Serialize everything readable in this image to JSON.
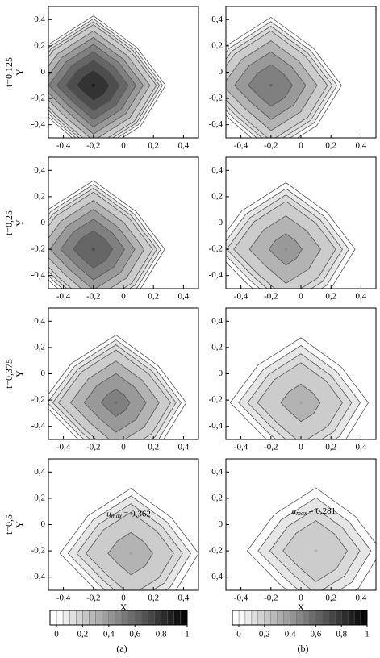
{
  "chart_data": [
    {
      "type": "contour",
      "row_label": "t=0,125",
      "ylabel": "Y",
      "xlim": [
        -0.5,
        0.5
      ],
      "ylim": [
        -0.5,
        0.5
      ],
      "xticks": [
        {
          "value": -0.4,
          "label": "-0,4"
        },
        {
          "value": -0.2,
          "label": "-0,2"
        },
        0,
        {
          "value": 0.2,
          "label": "0,2"
        },
        {
          "value": 0.4,
          "label": "0,4"
        }
      ],
      "yticks": [
        {
          "value": -0.4,
          "label": "-0,4"
        },
        {
          "value": -0.2,
          "label": "-0,2"
        },
        0,
        {
          "value": 0.2,
          "label": "0,2"
        },
        {
          "value": 0.4,
          "label": "0,4"
        }
      ],
      "peak": {
        "x": -0.2,
        "y": -0.1,
        "max": 0.9
      },
      "levels": [
        0.05,
        0.1,
        0.15,
        0.2,
        0.3,
        0.4,
        0.5,
        0.6,
        0.7,
        0.8
      ]
    },
    {
      "type": "contour",
      "xlim": [
        -0.5,
        0.5
      ],
      "ylim": [
        -0.5,
        0.5
      ],
      "xticks": [
        {
          "value": -0.4,
          "label": "-0,4"
        },
        {
          "value": -0.2,
          "label": "-0,2"
        },
        0,
        {
          "value": 0.2,
          "label": "0,2"
        },
        {
          "value": 0.4,
          "label": "0,4"
        }
      ],
      "yticks": [
        {
          "value": -0.4,
          "label": "-0,4"
        },
        {
          "value": -0.2,
          "label": "-0,2"
        },
        0,
        {
          "value": 0.2,
          "label": "0,2"
        },
        {
          "value": 0.4,
          "label": "0,4"
        }
      ],
      "peak": {
        "x": -0.2,
        "y": -0.1,
        "max": 0.6
      },
      "levels": [
        0.05,
        0.1,
        0.15,
        0.2,
        0.3,
        0.4,
        0.5
      ]
    },
    {
      "type": "contour",
      "row_label": "t=0,25",
      "ylabel": "Y",
      "xlim": [
        -0.5,
        0.5
      ],
      "ylim": [
        -0.5,
        0.5
      ],
      "xticks": [
        {
          "value": -0.4,
          "label": "-0,4"
        },
        {
          "value": -0.2,
          "label": "-0,2"
        },
        0,
        {
          "value": 0.2,
          "label": "0,2"
        },
        {
          "value": 0.4,
          "label": "0,4"
        }
      ],
      "yticks": [
        {
          "value": -0.4,
          "label": "-0,4"
        },
        {
          "value": -0.2,
          "label": "-0,2"
        },
        0,
        {
          "value": 0.2,
          "label": "0,2"
        },
        {
          "value": 0.4,
          "label": "0,4"
        }
      ],
      "peak": {
        "x": -0.2,
        "y": -0.2,
        "max": 0.7
      },
      "levels": [
        0.05,
        0.1,
        0.15,
        0.2,
        0.3,
        0.4,
        0.5,
        0.6
      ]
    },
    {
      "type": "contour",
      "xlim": [
        -0.5,
        0.5
      ],
      "ylim": [
        -0.5,
        0.5
      ],
      "xticks": [
        {
          "value": -0.4,
          "label": "-0,4"
        },
        {
          "value": -0.2,
          "label": "-0,2"
        },
        0,
        {
          "value": 0.2,
          "label": "0,2"
        },
        {
          "value": 0.4,
          "label": "0,4"
        }
      ],
      "yticks": [
        {
          "value": -0.4,
          "label": "-0,4"
        },
        {
          "value": -0.2,
          "label": "-0,2"
        },
        0,
        {
          "value": 0.2,
          "label": "0,2"
        },
        {
          "value": 0.4,
          "label": "0,4"
        }
      ],
      "peak": {
        "x": -0.1,
        "y": -0.2,
        "max": 0.45
      },
      "levels": [
        0.05,
        0.1,
        0.15,
        0.2,
        0.3,
        0.4
      ]
    },
    {
      "type": "contour",
      "row_label": "t=0,375",
      "ylabel": "Y",
      "xlim": [
        -0.5,
        0.5
      ],
      "ylim": [
        -0.5,
        0.5
      ],
      "xticks": [
        {
          "value": -0.4,
          "label": "-0,4"
        },
        {
          "value": -0.2,
          "label": "-0,2"
        },
        0,
        {
          "value": 0.2,
          "label": "0,2"
        },
        {
          "value": 0.4,
          "label": "0,4"
        }
      ],
      "yticks": [
        {
          "value": -0.4,
          "label": "-0,4"
        },
        {
          "value": -0.2,
          "label": "-0,2"
        },
        0,
        {
          "value": 0.2,
          "label": "0,2"
        },
        {
          "value": 0.4,
          "label": "0,4"
        }
      ],
      "peak": {
        "x": -0.05,
        "y": -0.22,
        "max": 0.55
      },
      "levels": [
        0.05,
        0.1,
        0.15,
        0.2,
        0.3,
        0.4,
        0.5
      ]
    },
    {
      "type": "contour",
      "xlim": [
        -0.5,
        0.5
      ],
      "ylim": [
        -0.5,
        0.5
      ],
      "xticks": [
        {
          "value": -0.4,
          "label": "-0,4"
        },
        {
          "value": -0.2,
          "label": "-0,2"
        },
        0,
        {
          "value": 0.2,
          "label": "0,2"
        },
        {
          "value": 0.4,
          "label": "0,4"
        }
      ],
      "yticks": [
        {
          "value": -0.4,
          "label": "-0,4"
        },
        {
          "value": -0.2,
          "label": "-0,2"
        },
        0,
        {
          "value": 0.2,
          "label": "0,2"
        },
        {
          "value": 0.4,
          "label": "0,4"
        }
      ],
      "peak": {
        "x": 0,
        "y": -0.22,
        "max": 0.35
      },
      "levels": [
        0.05,
        0.1,
        0.15,
        0.2,
        0.3
      ]
    },
    {
      "type": "contour",
      "row_label": "t=0,5",
      "ylabel": "Y",
      "xlabel": "X",
      "xlim": [
        -0.5,
        0.5
      ],
      "ylim": [
        -0.5,
        0.5
      ],
      "xticks": [
        {
          "value": -0.4,
          "label": "-0,4"
        },
        {
          "value": -0.2,
          "label": "-0,2"
        },
        0,
        {
          "value": 0.2,
          "label": "0,2"
        },
        {
          "value": 0.4,
          "label": "0,4"
        }
      ],
      "yticks": [
        {
          "value": -0.4,
          "label": "-0,4"
        },
        {
          "value": -0.2,
          "label": "-0,2"
        },
        0,
        {
          "value": 0.2,
          "label": "0,2"
        },
        {
          "value": 0.4,
          "label": "0,4"
        }
      ],
      "peak": {
        "x": 0.05,
        "y": -0.22,
        "max": 0.362
      },
      "annotation": {
        "symbol": "u",
        "subscript": "max",
        "text": "= 0,362"
      },
      "levels": [
        0.05,
        0.1,
        0.15,
        0.2,
        0.3
      ]
    },
    {
      "type": "contour",
      "xlabel": "X",
      "xlim": [
        -0.5,
        0.5
      ],
      "ylim": [
        -0.5,
        0.5
      ],
      "xticks": [
        {
          "value": -0.4,
          "label": "-0,4"
        },
        {
          "value": -0.2,
          "label": "-0,2"
        },
        0,
        {
          "value": 0.2,
          "label": "0,2"
        },
        {
          "value": 0.4,
          "label": "0,4"
        }
      ],
      "yticks": [
        {
          "value": -0.4,
          "label": "-0,4"
        },
        {
          "value": -0.2,
          "label": "-0,2"
        },
        0,
        {
          "value": 0.2,
          "label": "0,2"
        },
        {
          "value": 0.4,
          "label": "0,4"
        }
      ],
      "peak": {
        "x": 0.1,
        "y": -0.2,
        "max": 0.281
      },
      "annotation": {
        "symbol": "u",
        "subscript": "max",
        "text": "= 0,281"
      },
      "levels": [
        0.05,
        0.1,
        0.15,
        0.2
      ]
    },
    {
      "type": "colorbar",
      "caption": "(a)",
      "lim": [
        0,
        1
      ],
      "ticks": [
        0,
        {
          "value": 0.2,
          "label": "0,2"
        },
        {
          "value": 0.4,
          "label": "0,4"
        },
        {
          "value": 0.6,
          "label": "0,6"
        },
        {
          "value": 0.8,
          "label": "0,8"
        },
        1
      ]
    },
    {
      "type": "colorbar",
      "caption": "(b)",
      "lim": [
        0,
        1
      ],
      "ticks": [
        0,
        {
          "value": 0.2,
          "label": "0,2"
        },
        {
          "value": 0.4,
          "label": "0,4"
        },
        {
          "value": 0.6,
          "label": "0,6"
        },
        {
          "value": 0.8,
          "label": "0,8"
        },
        1
      ]
    }
  ]
}
